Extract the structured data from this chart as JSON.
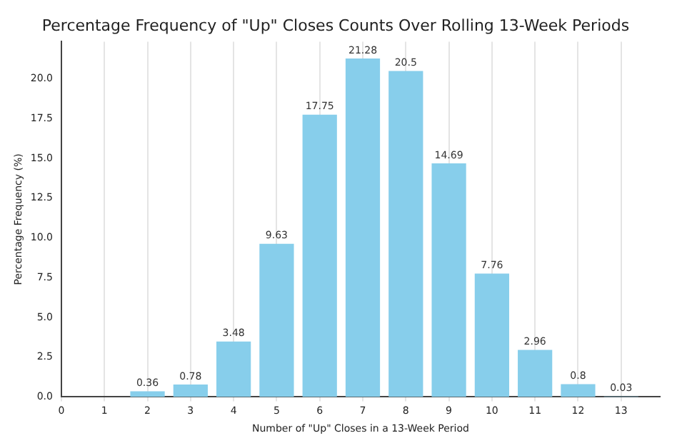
{
  "chart_data": {
    "type": "bar",
    "title": "Percentage Frequency of \"Up\" Closes Counts Over Rolling 13-Week Periods",
    "xlabel": "Number of \"Up\" Closes in a 13-Week Period",
    "ylabel": "Percentage Frequency (%)",
    "x": [
      2,
      3,
      4,
      5,
      6,
      7,
      8,
      9,
      10,
      11,
      12,
      13
    ],
    "values": [
      0.36,
      0.78,
      3.48,
      9.63,
      17.75,
      21.28,
      20.5,
      14.69,
      7.76,
      2.96,
      0.8,
      0.03
    ],
    "color": "#87ceeb",
    "xlim": [
      0,
      13.9
    ],
    "xticks": [
      0,
      1,
      2,
      3,
      4,
      5,
      6,
      7,
      8,
      9,
      10,
      11,
      12,
      13
    ],
    "ylim": [
      0,
      22.34
    ],
    "yticks": [
      {
        "value": 0,
        "label": "0.0"
      },
      {
        "value": 2.5,
        "label": "2.5"
      },
      {
        "value": 5,
        "label": "5.0"
      },
      {
        "value": 7.5,
        "label": "7.5"
      },
      {
        "value": 10,
        "label": "10.0"
      },
      {
        "value": 12.5,
        "label": "12.5"
      },
      {
        "value": 15,
        "label": "15.0"
      },
      {
        "value": 17.5,
        "label": "17.5"
      },
      {
        "value": 20,
        "label": "20.0"
      }
    ],
    "grid": "x",
    "data_labels": true,
    "legend": false
  }
}
